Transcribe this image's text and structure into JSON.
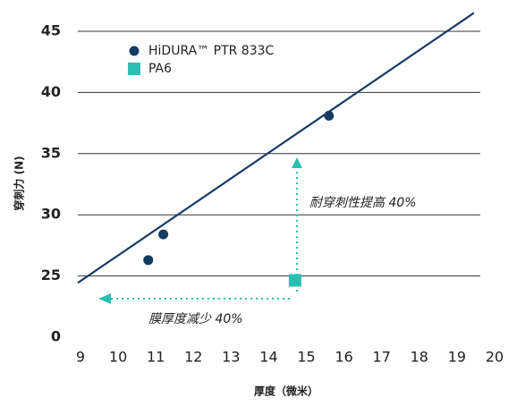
{
  "chart_data": {
    "type": "scatter",
    "x_label": "厚度（微米）",
    "y_label": "穿刺力 (N)",
    "xlim": [
      9,
      20
    ],
    "xticks": [
      9,
      10,
      11,
      12,
      13,
      14,
      15,
      16,
      17,
      18,
      19,
      20
    ],
    "ylim": [
      0,
      46.5
    ],
    "yticks": [
      0,
      25,
      30,
      35,
      40,
      45
    ],
    "grid": true,
    "series": [
      {
        "name": "HiDURA™ PTR 833C",
        "color": "#143b63",
        "marker": "circle",
        "x": [
          10.8,
          11.2,
          15.6
        ],
        "values": [
          26.3,
          28.4,
          38.1
        ]
      },
      {
        "name": "PA6",
        "color": "#2bbfb3",
        "marker": "square",
        "x": [
          14.7
        ],
        "values": [
          23.2
        ]
      }
    ],
    "trendline": {
      "color": "#143b63",
      "x": [
        8.93,
        19.45
      ],
      "values": [
        22.2,
        46.5
      ]
    },
    "annotations": [
      "耐穿刺性提高 40%",
      "膜厚度减少 40%"
    ]
  }
}
